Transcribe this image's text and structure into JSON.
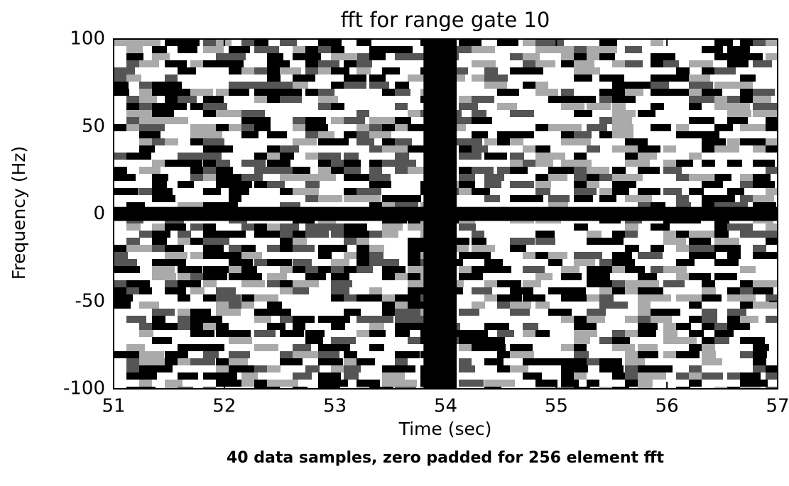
{
  "chart_data": {
    "type": "spectrogram",
    "title": "fft for range gate 10",
    "xlabel": "Time (sec)",
    "ylabel": "Frequency (Hz)",
    "caption": "40 data samples, zero padded for  256 element fft",
    "xlim": [
      51,
      57
    ],
    "ylim": [
      -100,
      100
    ],
    "xticks": [
      51,
      52,
      53,
      54,
      55,
      56,
      57
    ],
    "yticks": [
      -100,
      -50,
      0,
      50,
      100
    ],
    "color": "#000000",
    "regions": [
      {
        "x": [
          53.8,
          54.1
        ],
        "y": [
          -100,
          100
        ]
      },
      {
        "x": [
          51,
          57
        ],
        "y": [
          -4,
          4
        ]
      }
    ]
  }
}
